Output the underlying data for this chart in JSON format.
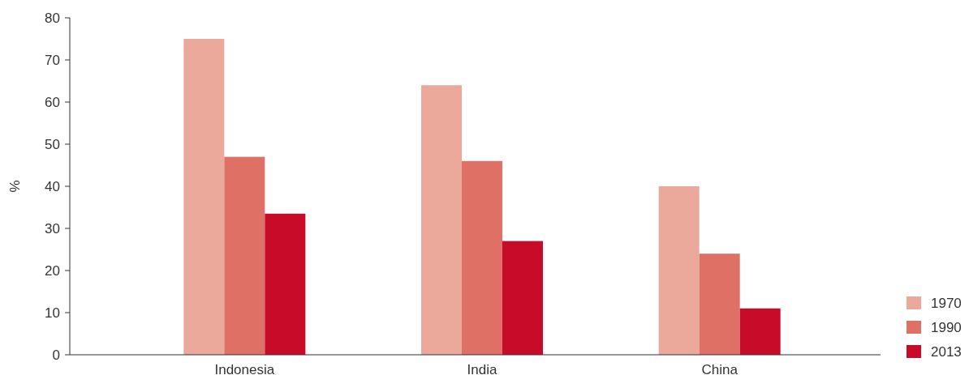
{
  "chart_data": {
    "type": "bar",
    "ylabel": "%",
    "categories": [
      "Indonesia",
      "India",
      "China"
    ],
    "series": [
      {
        "name": "1970",
        "color": "#eaa99b",
        "values": [
          75,
          64,
          40
        ]
      },
      {
        "name": "1990",
        "color": "#df7065",
        "values": [
          47,
          46,
          24
        ]
      },
      {
        "name": "2013",
        "color": "#c90b2a",
        "values": [
          33.5,
          27,
          11
        ]
      }
    ],
    "ylim": [
      0,
      80
    ],
    "yticks": [
      0,
      10,
      20,
      30,
      40,
      50,
      60,
      70,
      80
    ],
    "grid": false,
    "legend": "bottom right"
  }
}
